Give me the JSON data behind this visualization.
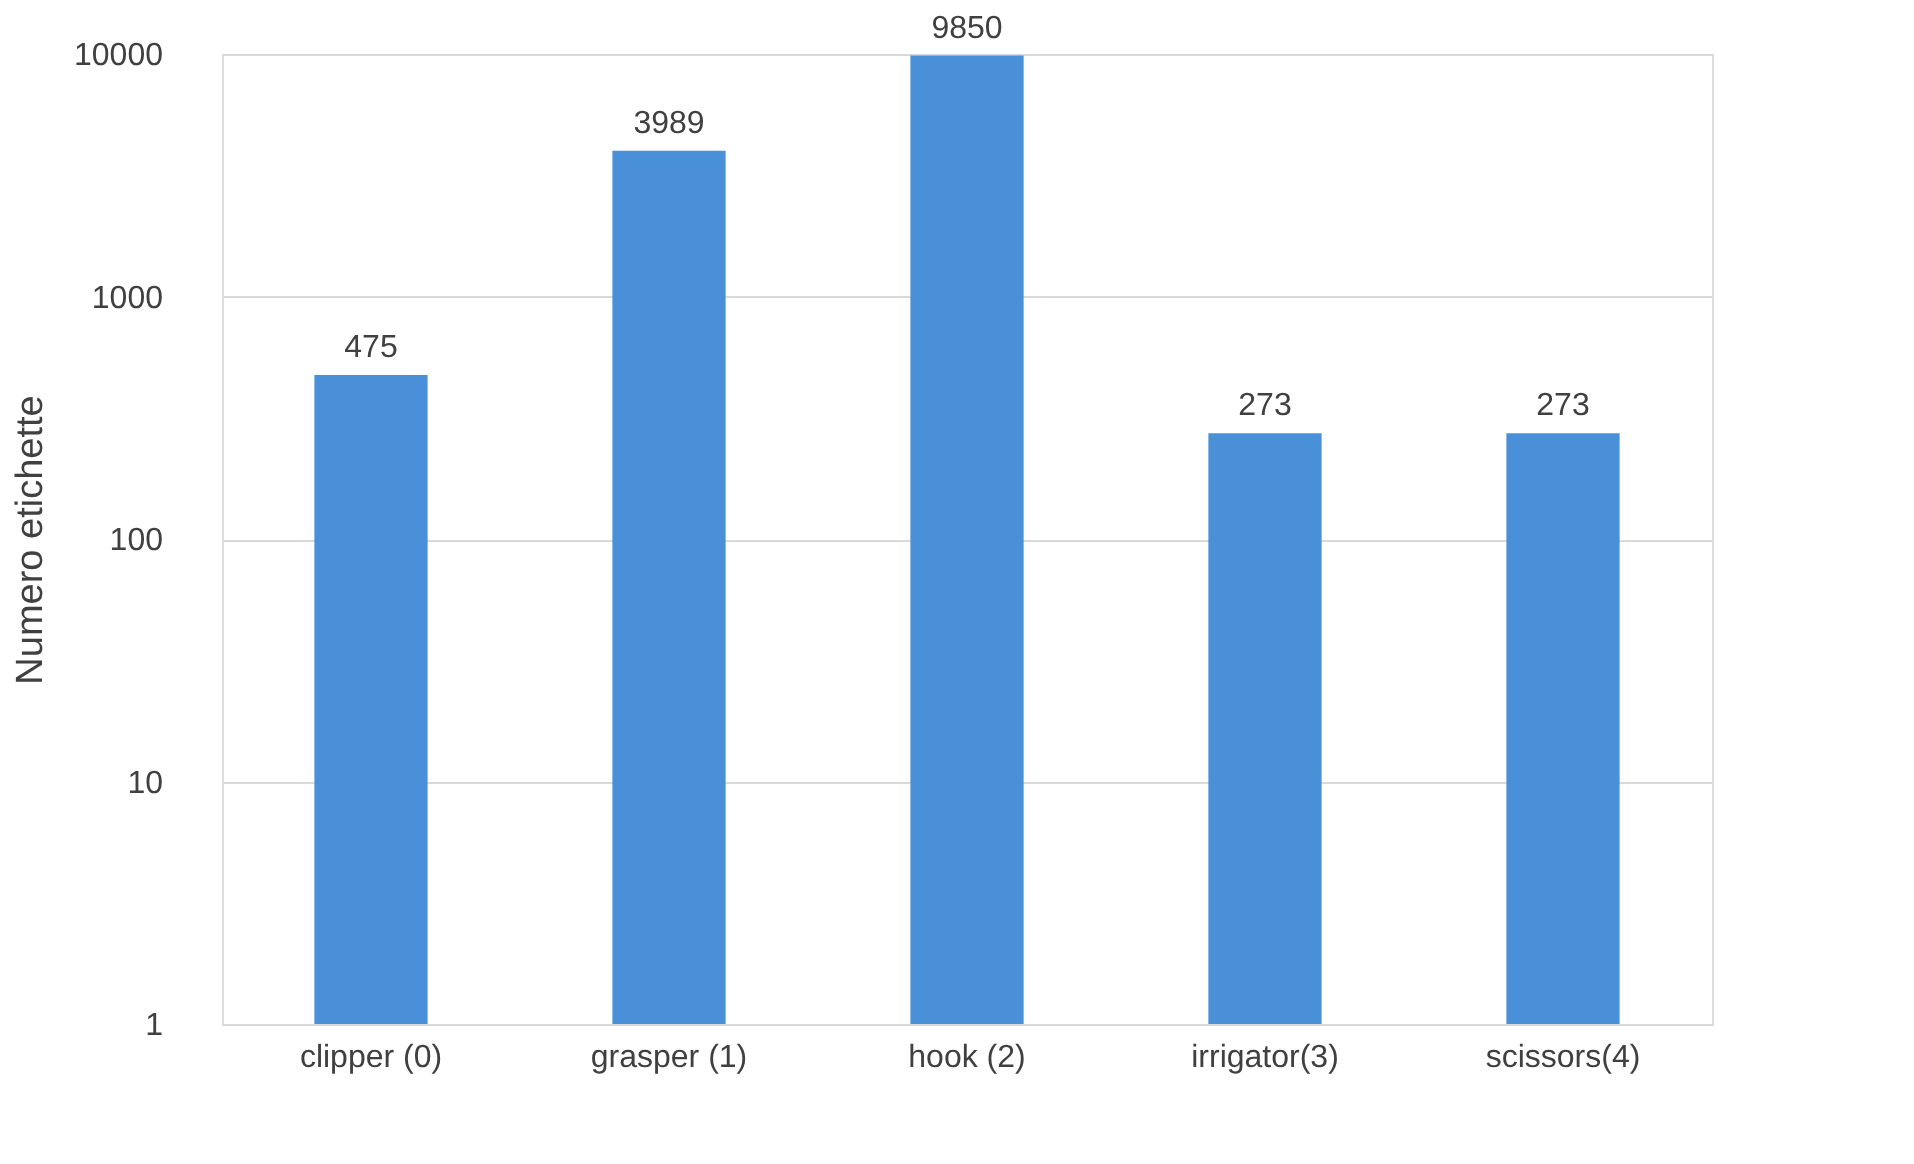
{
  "chart_data": {
    "type": "bar",
    "ylabel": "Numero etichette",
    "categories": [
      "clipper (0)",
      "grasper (1)",
      "hook (2)",
      "irrigator(3)",
      "scissors(4)"
    ],
    "values": [
      475,
      3989,
      9850,
      273,
      273
    ],
    "color": "#4a90d9",
    "log": true,
    "ylim": [
      1,
      10000
    ],
    "yticks": [
      1,
      10,
      100,
      1000,
      10000
    ],
    "grid": "y",
    "data_labels": true
  }
}
